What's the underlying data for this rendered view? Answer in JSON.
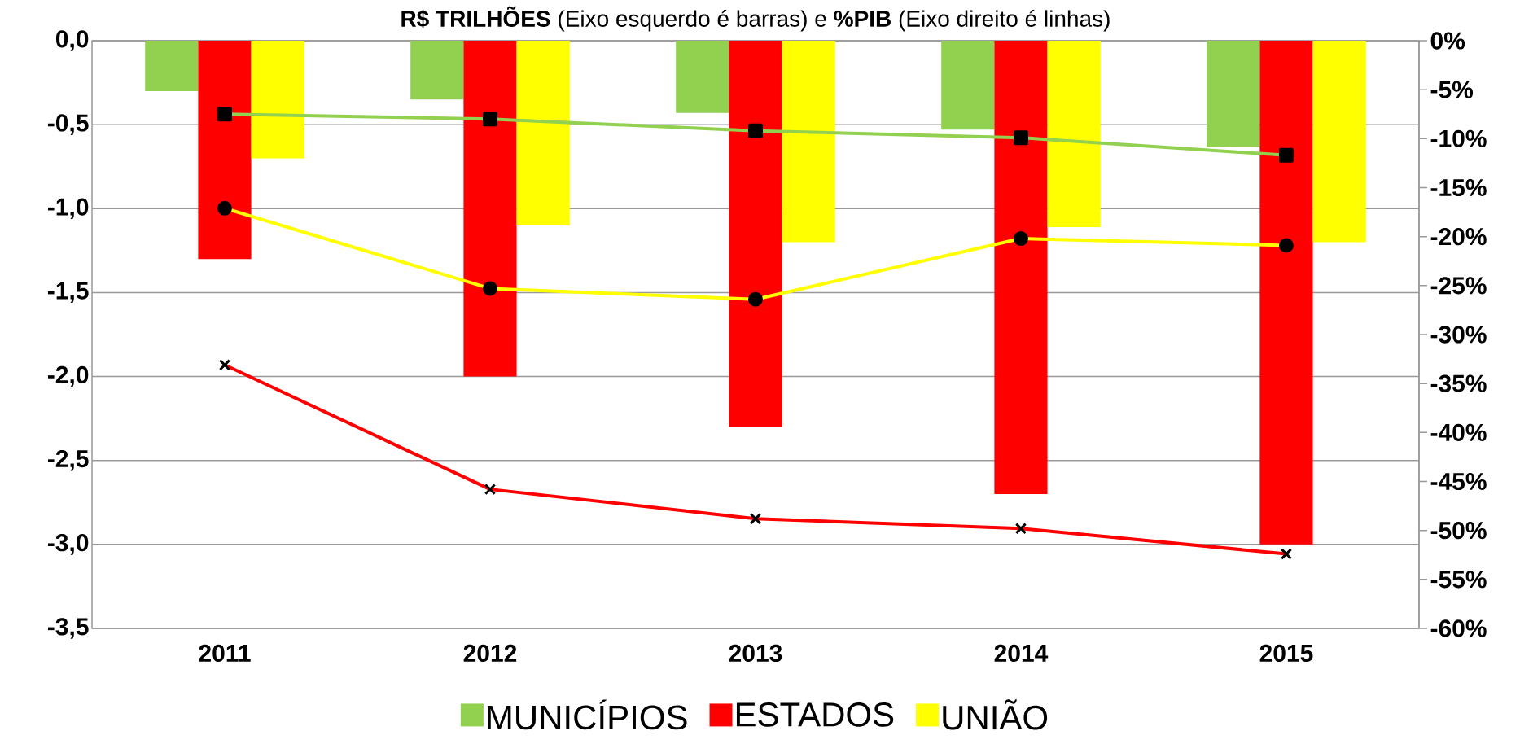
{
  "chart_data": {
    "type": "bar",
    "title": "**R$ TRILHÕES** (Eixo esquerdo é barras) e **%PIB** (Eixo direito é linhas)",
    "categories": [
      "2011",
      "2012",
      "2013",
      "2014",
      "2015"
    ],
    "series": [
      {
        "name": "MUNICÍPIOS",
        "color": "#92d050",
        "values": [
          -0.3,
          -0.35,
          -0.43,
          -0.53,
          -0.63
        ]
      },
      {
        "name": "ESTADOS",
        "color": "#ff0000",
        "values": [
          -1.3,
          -2.0,
          -2.3,
          -2.7,
          -3.0
        ]
      },
      {
        "name": "UNIÃO",
        "color": "#ffff00",
        "values": [
          -0.7,
          -1.1,
          -1.2,
          -1.11,
          -1.2
        ]
      },
      {
        "type": "line",
        "axis": "y2",
        "marker": "square",
        "color": "#92d050",
        "values": [
          -7.5,
          -8.0,
          -9.2,
          -9.9,
          -11.7
        ]
      },
      {
        "type": "line",
        "axis": "y2",
        "marker": "circle",
        "color": "#ffff00",
        "values": [
          -17.1,
          -25.3,
          -26.4,
          -20.2,
          -20.9
        ]
      },
      {
        "type": "line",
        "axis": "y2",
        "marker": "cross",
        "color": "#ff0000",
        "values": [
          -33.1,
          -45.8,
          -48.8,
          -49.8,
          -52.4
        ]
      }
    ],
    "ylim": [
      -3.5,
      0
    ],
    "yticks": [
      {
        "value": 0,
        "label": "0,0"
      },
      {
        "value": -0.5,
        "label": "-0,5"
      },
      {
        "value": -1,
        "label": "-1,0"
      },
      {
        "value": -1.5,
        "label": "-1,5"
      },
      {
        "value": -2,
        "label": "-2,0"
      },
      {
        "value": -2.5,
        "label": "-2,5"
      },
      {
        "value": -3,
        "label": "-3,0"
      },
      {
        "value": -3.5,
        "label": "-3,5"
      }
    ],
    "y2lim": [
      -60,
      0
    ],
    "y2ticks": [
      {
        "value": 0,
        "label": "0%"
      },
      {
        "value": -5,
        "label": "-5%"
      },
      {
        "value": -10,
        "label": "-10%"
      },
      {
        "value": -15,
        "label": "-15%"
      },
      {
        "value": -20,
        "label": "-20%"
      },
      {
        "value": -25,
        "label": "-25%"
      },
      {
        "value": -30,
        "label": "-30%"
      },
      {
        "value": -35,
        "label": "-35%"
      },
      {
        "value": -40,
        "label": "-40%"
      },
      {
        "value": -45,
        "label": "-45%"
      },
      {
        "value": -50,
        "label": "-50%"
      },
      {
        "value": -55,
        "label": "-55%"
      },
      {
        "value": -60,
        "label": "-60%"
      }
    ],
    "grid": "y",
    "legend": "bottom"
  }
}
